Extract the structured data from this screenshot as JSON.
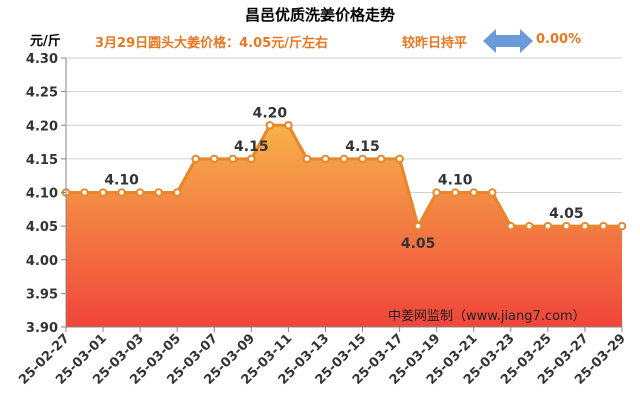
{
  "header": {
    "title": "昌邑优质洗姜价格走势",
    "unit": "元/斤",
    "price_info": "3月29日圆头大姜价格：4.05元/斤左右",
    "compare_label": "较昨日持平",
    "change": "0.00%"
  },
  "source": "中姜网监制（www.jiang7.com）",
  "colors": {
    "line": "#e8862a",
    "fill_top": "#f6b14a",
    "fill_bottom": "#f0453a",
    "accent_text": "#e87722",
    "arrow": "#6a9ad8"
  },
  "chart_data": {
    "type": "area",
    "x": [
      "25-02-27",
      "25-02-28",
      "25-03-01",
      "25-03-02",
      "25-03-03",
      "25-03-04",
      "25-03-05",
      "25-03-06",
      "25-03-07",
      "25-03-08",
      "25-03-09",
      "25-03-10",
      "25-03-11",
      "25-03-12",
      "25-03-13",
      "25-03-14",
      "25-03-15",
      "25-03-16",
      "25-03-17",
      "25-03-18",
      "25-03-19",
      "25-03-20",
      "25-03-21",
      "25-03-22",
      "25-03-23",
      "25-03-24",
      "25-03-25",
      "25-03-26",
      "25-03-27",
      "25-03-28",
      "25-03-29"
    ],
    "values": [
      4.1,
      4.1,
      4.1,
      4.1,
      4.1,
      4.1,
      4.1,
      4.15,
      4.15,
      4.15,
      4.15,
      4.2,
      4.2,
      4.15,
      4.15,
      4.15,
      4.15,
      4.15,
      4.15,
      4.05,
      4.1,
      4.1,
      4.1,
      4.1,
      4.05,
      4.05,
      4.05,
      4.05,
      4.05,
      4.05,
      4.05
    ],
    "x_tick_labels": [
      "25-02-27",
      "25-03-01",
      "25-03-03",
      "25-03-05",
      "25-03-07",
      "25-03-09",
      "25-03-11",
      "25-03-13",
      "25-03-15",
      "25-03-17",
      "25-03-19",
      "25-03-21",
      "25-03-23",
      "25-03-25",
      "25-03-27",
      "25-03-29"
    ],
    "y_ticks": [
      "3.90",
      "3.95",
      "4.00",
      "4.05",
      "4.10",
      "4.15",
      "4.20",
      "4.25",
      "4.30"
    ],
    "ylim": [
      3.9,
      4.3
    ],
    "grid": true,
    "data_labels": [
      {
        "index": 3,
        "text": "4.10"
      },
      {
        "index": 10,
        "text": "4.15"
      },
      {
        "index": 11,
        "text": "4.20"
      },
      {
        "index": 16,
        "text": "4.15"
      },
      {
        "index": 19,
        "text": "4.05"
      },
      {
        "index": 21,
        "text": "4.10"
      },
      {
        "index": 27,
        "text": "4.05"
      }
    ]
  }
}
